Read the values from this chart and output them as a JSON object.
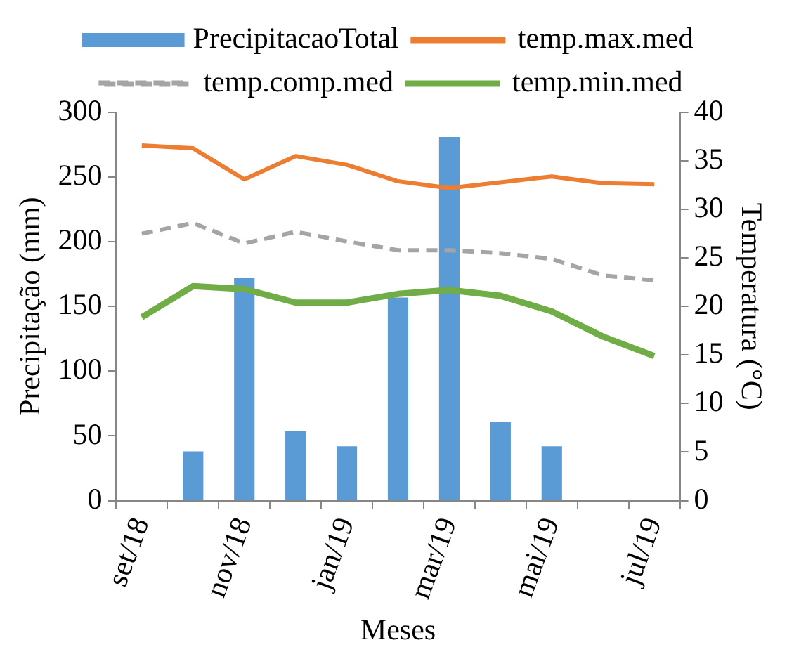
{
  "chart_data": {
    "type": "bar",
    "xlabel": "Meses",
    "ylabel": "Precipitação (mm)",
    "y2label": "Temperatura (°C)",
    "categories": [
      "set/18",
      null,
      "nov/18",
      null,
      "jan/19",
      null,
      "mar/19",
      null,
      "mai/19",
      null,
      "jul/19"
    ],
    "series": [
      {
        "name": "PrecipitacaoTotal",
        "color": "#5b9bd5",
        "values": [
          null,
          38,
          172,
          54,
          42,
          157,
          281,
          61,
          42,
          null,
          null
        ]
      },
      {
        "name": "temp.max.med",
        "type": "line",
        "axis": "y2",
        "color": "#ed7d31",
        "line_style": "solid",
        "values": [
          36.6,
          36.3,
          33.1,
          35.5,
          34.6,
          32.9,
          32.2,
          32.8,
          33.4,
          32.7,
          32.6
        ]
      },
      {
        "name": "temp.comp.med",
        "type": "line",
        "axis": "y2",
        "color": "#a5a5a5",
        "line_style": "dashed",
        "values": [
          27.5,
          28.6,
          26.5,
          27.7,
          26.7,
          25.8,
          25.8,
          25.5,
          24.9,
          23.2,
          22.7
        ]
      },
      {
        "name": "temp.min.med",
        "type": "line",
        "axis": "y2",
        "color": "#70ad47",
        "line_style": "solid",
        "values": [
          18.9,
          22.1,
          21.8,
          20.4,
          20.4,
          21.3,
          21.7,
          21.1,
          19.5,
          16.9,
          14.9
        ]
      }
    ],
    "ylim": [
      0,
      300
    ],
    "yticks": [
      0,
      50,
      100,
      150,
      200,
      250,
      300
    ],
    "y2lim": [
      0,
      40
    ],
    "y2ticks": [
      0,
      5,
      10,
      15,
      20,
      25,
      30,
      35,
      40
    ],
    "grid": false,
    "legend": "top",
    "marker": "none"
  }
}
